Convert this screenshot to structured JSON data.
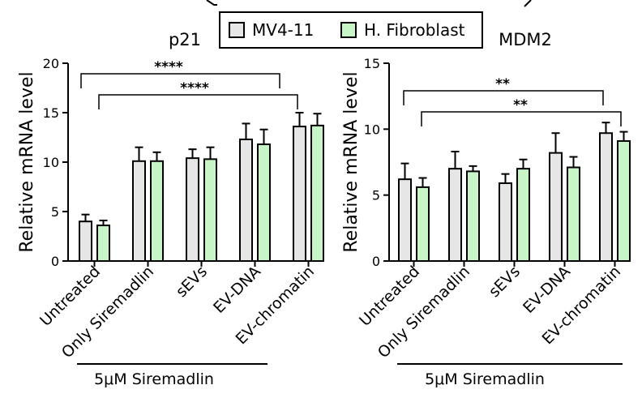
{
  "legend": {
    "items": [
      {
        "label": "MV4-11",
        "color": "#e6e6e6"
      },
      {
        "label": "H. Fibroblast",
        "color": "#c8f5c8"
      }
    ]
  },
  "chart_data": [
    {
      "type": "bar",
      "title": "p21",
      "ylabel": "Relative mRNA level",
      "ylim": [
        0,
        20
      ],
      "yticks": [
        0,
        5,
        10,
        15,
        20
      ],
      "categories": [
        "Untreated",
        "Only Siremadlin",
        "sEVs",
        "EV-DNA",
        "EV-chromatin"
      ],
      "group_label": "5μM Siremadlin",
      "series": [
        {
          "name": "MV4-11",
          "color": "#e6e6e6",
          "values": [
            4.0,
            10.1,
            10.4,
            12.3,
            13.6
          ],
          "errors": [
            0.7,
            1.4,
            0.9,
            1.6,
            1.4
          ]
        },
        {
          "name": "H. Fibroblast",
          "color": "#c8f5c8",
          "values": [
            3.6,
            10.1,
            10.3,
            11.8,
            13.7
          ],
          "errors": [
            0.5,
            0.9,
            1.2,
            1.5,
            1.2
          ]
        }
      ],
      "significance": [
        {
          "label": "****",
          "from": "Untreated MV4-11",
          "to": "EV-chromatin MV4-11"
        },
        {
          "label": "****",
          "from": "Untreated H. Fibroblast",
          "to": "EV-chromatin H. Fibroblast"
        }
      ]
    },
    {
      "type": "bar",
      "title": "MDM2",
      "ylabel": "Relative mRNA level",
      "ylim": [
        0,
        15
      ],
      "yticks": [
        0,
        5,
        10,
        15
      ],
      "categories": [
        "Untreated",
        "Only Siremadlin",
        "sEVs",
        "EV-DNA",
        "EV-chromatin"
      ],
      "group_label": "5μM Siremadlin",
      "series": [
        {
          "name": "MV4-11",
          "color": "#e6e6e6",
          "values": [
            6.2,
            7.0,
            5.9,
            8.2,
            9.7
          ],
          "errors": [
            1.2,
            1.3,
            0.7,
            1.5,
            0.8
          ]
        },
        {
          "name": "H. Fibroblast",
          "color": "#c8f5c8",
          "values": [
            5.6,
            6.8,
            7.0,
            7.1,
            9.1
          ],
          "errors": [
            0.7,
            0.4,
            0.7,
            0.8,
            0.7
          ]
        }
      ],
      "significance": [
        {
          "label": "**",
          "from": "Untreated MV4-11",
          "to": "EV-chromatin MV4-11"
        },
        {
          "label": "**",
          "from": "Untreated H. Fibroblast",
          "to": "EV-chromatin H. Fibroblast"
        }
      ]
    }
  ]
}
